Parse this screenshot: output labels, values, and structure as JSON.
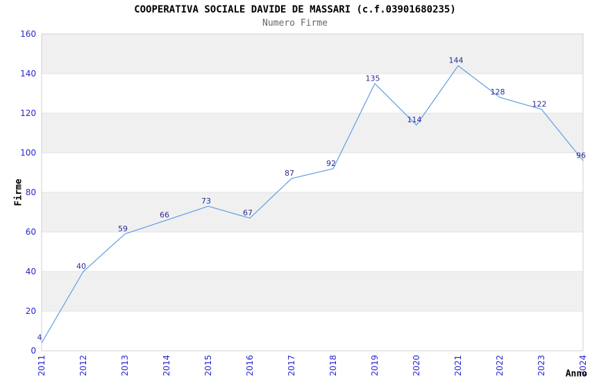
{
  "chart_data": {
    "type": "line",
    "title": "COOPERATIVA SOCIALE DAVIDE DE MASSARI (c.f.03901680235)",
    "subtitle": "Numero Firme",
    "xlabel": "Anno",
    "ylabel": "Firme",
    "categories": [
      "2011",
      "2012",
      "2013",
      "2014",
      "2015",
      "2016",
      "2017",
      "2018",
      "2019",
      "2020",
      "2021",
      "2022",
      "2023",
      "2024"
    ],
    "series": [
      {
        "name": "Numero Firme",
        "values": [
          4,
          40,
          59,
          66,
          73,
          67,
          87,
          92,
          135,
          114,
          144,
          128,
          122,
          96
        ]
      }
    ],
    "ylim": [
      0,
      160
    ],
    "ytick_step": 20,
    "yticks": [
      0,
      20,
      40,
      60,
      80,
      100,
      120,
      140,
      160
    ],
    "grid": "alternating-horizontal-bands",
    "legend_position": "none",
    "data_labels_visible": true,
    "x_tick_rotation_deg": -90
  },
  "colors": {
    "line": "#5c9ce6",
    "tick_label": "#2525cc",
    "data_label": "#2b2b94",
    "band_gray": "#f0f0f0",
    "band_white": "#ffffff",
    "grid_line": "#e2e2e2",
    "plot_border": "#cfcfcf",
    "title": "#000000",
    "subtitle": "#666666",
    "axis_title": "#000000"
  }
}
